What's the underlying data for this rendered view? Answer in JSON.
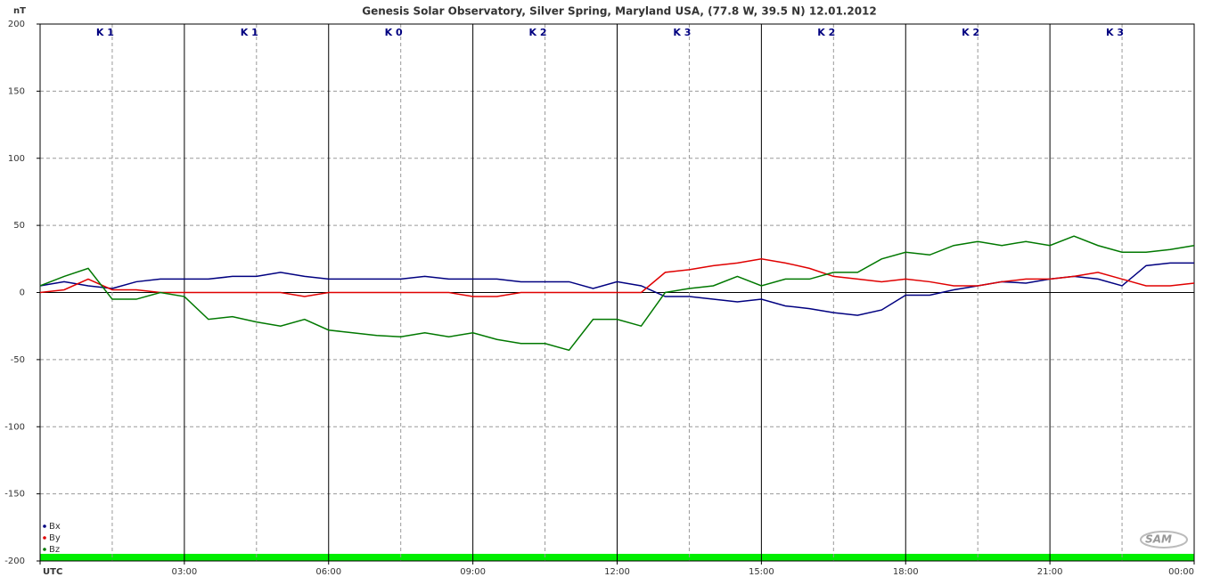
{
  "chart_data": {
    "type": "line",
    "title": "Genesis Solar Observatory, Silver Spring, Maryland USA, (77.8 W, 39.5 N)  12.01.2012",
    "ylabel": "nT",
    "logo": "SAM",
    "annotations": [
      "K 1",
      "K 1",
      "K 0",
      "K 2",
      "K 3",
      "K 2",
      "K 2",
      "K 3"
    ],
    "x": [
      0,
      0.5,
      1,
      1.5,
      2,
      2.5,
      3,
      3.5,
      4,
      4.5,
      5,
      5.5,
      6,
      6.5,
      7,
      7.5,
      8,
      8.5,
      9,
      9.5,
      10,
      10.5,
      11,
      11.5,
      12,
      12.5,
      13,
      13.5,
      14,
      14.5,
      15,
      15.5,
      16,
      16.5,
      17,
      17.5,
      18,
      18.5,
      19,
      19.5,
      20,
      20.5,
      21,
      21.5,
      22,
      22.5,
      23,
      23.5,
      24
    ],
    "xlim": [
      0,
      24
    ],
    "xticks": [
      {
        "value": 0,
        "label": "UTC"
      },
      {
        "value": 3,
        "label": "03:00"
      },
      {
        "value": 6,
        "label": "06:00"
      },
      {
        "value": 9,
        "label": "09:00"
      },
      {
        "value": 12,
        "label": "12:00"
      },
      {
        "value": 15,
        "label": "15:00"
      },
      {
        "value": 18,
        "label": "18:00"
      },
      {
        "value": 21,
        "label": "21:00"
      },
      {
        "value": 24,
        "label": "00:00"
      }
    ],
    "ylim": [
      -200,
      200
    ],
    "yticks": [
      -200,
      -150,
      -100,
      -50,
      0,
      50,
      100,
      150,
      200
    ],
    "grid": true,
    "legend": "lower left",
    "series": [
      {
        "name": "Bx",
        "color": "#000080",
        "values": [
          5,
          8,
          5,
          3,
          8,
          10,
          10,
          10,
          12,
          12,
          15,
          12,
          10,
          10,
          10,
          10,
          12,
          10,
          10,
          10,
          8,
          8,
          8,
          3,
          8,
          5,
          -3,
          -3,
          -5,
          -7,
          -5,
          -10,
          -12,
          -15,
          -17,
          -13,
          -2,
          -2,
          2,
          5,
          8,
          7,
          10,
          12,
          10,
          5,
          20,
          22,
          22
        ]
      },
      {
        "name": "By",
        "color": "#e00000",
        "values": [
          0,
          2,
          10,
          2,
          2,
          0,
          0,
          0,
          0,
          0,
          0,
          -3,
          0,
          0,
          0,
          0,
          0,
          0,
          -3,
          -3,
          0,
          0,
          0,
          0,
          0,
          0,
          15,
          17,
          20,
          22,
          25,
          22,
          18,
          12,
          10,
          8,
          10,
          8,
          5,
          5,
          8,
          10,
          10,
          12,
          15,
          10,
          5,
          5,
          7
        ]
      },
      {
        "name": "Bz",
        "color": "#007800",
        "values": [
          5,
          12,
          18,
          -5,
          -5,
          0,
          -3,
          -20,
          -18,
          -22,
          -25,
          -20,
          -28,
          -30,
          -32,
          -33,
          -30,
          -33,
          -30,
          -35,
          -38,
          -38,
          -43,
          -20,
          -20,
          -25,
          0,
          3,
          5,
          12,
          5,
          10,
          10,
          15,
          15,
          25,
          30,
          28,
          35,
          38,
          35,
          38,
          35,
          42,
          35,
          30,
          30,
          32,
          35
        ]
      }
    ]
  }
}
